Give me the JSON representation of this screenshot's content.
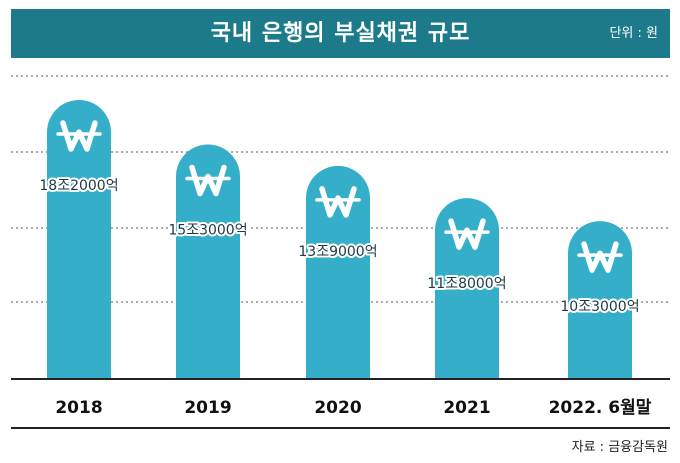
{
  "header": {
    "title": "국내 은행의 부실채권 규모",
    "unit": "단위 : 원"
  },
  "source": "자료 : 금융감독원",
  "colors": {
    "header": "#1c7a8a",
    "bar": "#35afc9",
    "won_icon": "#ffffff",
    "grid": "#555555"
  },
  "icon": "won-sign-icon",
  "chart_data": {
    "type": "bar",
    "categories": [
      "2018",
      "2019",
      "2020",
      "2021",
      "2022. 6월말"
    ],
    "values": [
      18.2,
      15.3,
      13.9,
      11.8,
      10.3
    ],
    "value_labels": [
      "18조2000억",
      "15조3000억",
      "13조9000억",
      "11조8000억",
      "10조3000억"
    ],
    "title": "국내 은행의 부실채권 규모",
    "xlabel": "",
    "ylabel": "",
    "grid": true
  }
}
